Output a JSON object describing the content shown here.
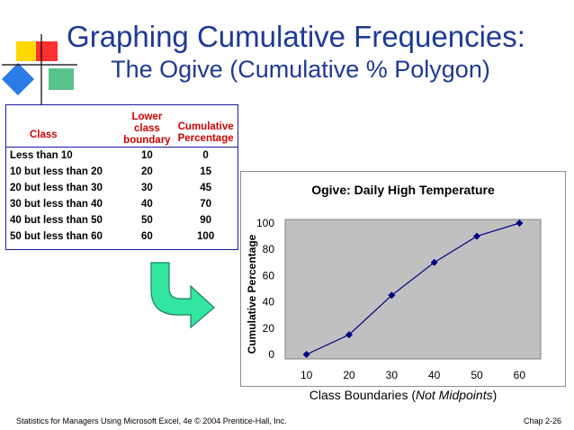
{
  "title_line1": "Graphing Cumulative Frequencies:",
  "title_line2": "The Ogive (Cumulative % Polygon)",
  "table": {
    "header_class": "Class",
    "header_lower": [
      "Lower",
      "class",
      "boundary"
    ],
    "header_cum": [
      "Cumulative",
      "Percentage"
    ],
    "rows": [
      {
        "class": "Less than 10",
        "lower": "10",
        "cum": "0"
      },
      {
        "class": "10 but less than 20",
        "lower": "20",
        "cum": "15"
      },
      {
        "class": "20 but less than 30",
        "lower": "30",
        "cum": "45"
      },
      {
        "class": "30 but less than 40",
        "lower": "40",
        "cum": "70"
      },
      {
        "class": "40 but less than 50",
        "lower": "50",
        "cum": "90"
      },
      {
        "class": "50 but less than 60",
        "lower": "60",
        "cum": "100"
      }
    ]
  },
  "chart_data": {
    "type": "line",
    "title": "Ogive: Daily High Temperature",
    "x": [
      10,
      20,
      30,
      40,
      50,
      60
    ],
    "series": [
      {
        "values": [
          0,
          15,
          45,
          70,
          90,
          100
        ]
      }
    ],
    "xlabel_prefix": "Class Boundaries (",
    "xlabel_italic": "Not Midpoints",
    "xlabel_suffix": ")",
    "ylabel": "Cumulative Percentage",
    "yticks": [
      0,
      20,
      40,
      60,
      80,
      100
    ],
    "xticks": [
      10,
      20,
      30,
      40,
      50,
      60
    ],
    "ylim": [
      0,
      100
    ],
    "plot_background": "#c0c0c0",
    "line_color": "#000080",
    "grid": false
  },
  "footer": {
    "left": "Statistics for Managers Using Microsoft Excel, 4e © 2004 Prentice-Hall, Inc.",
    "right": "Chap 2-26"
  },
  "colors": {
    "title": "#1f3a93",
    "table_header": "#cc0000",
    "arrow_fill": "#33e6a0"
  }
}
